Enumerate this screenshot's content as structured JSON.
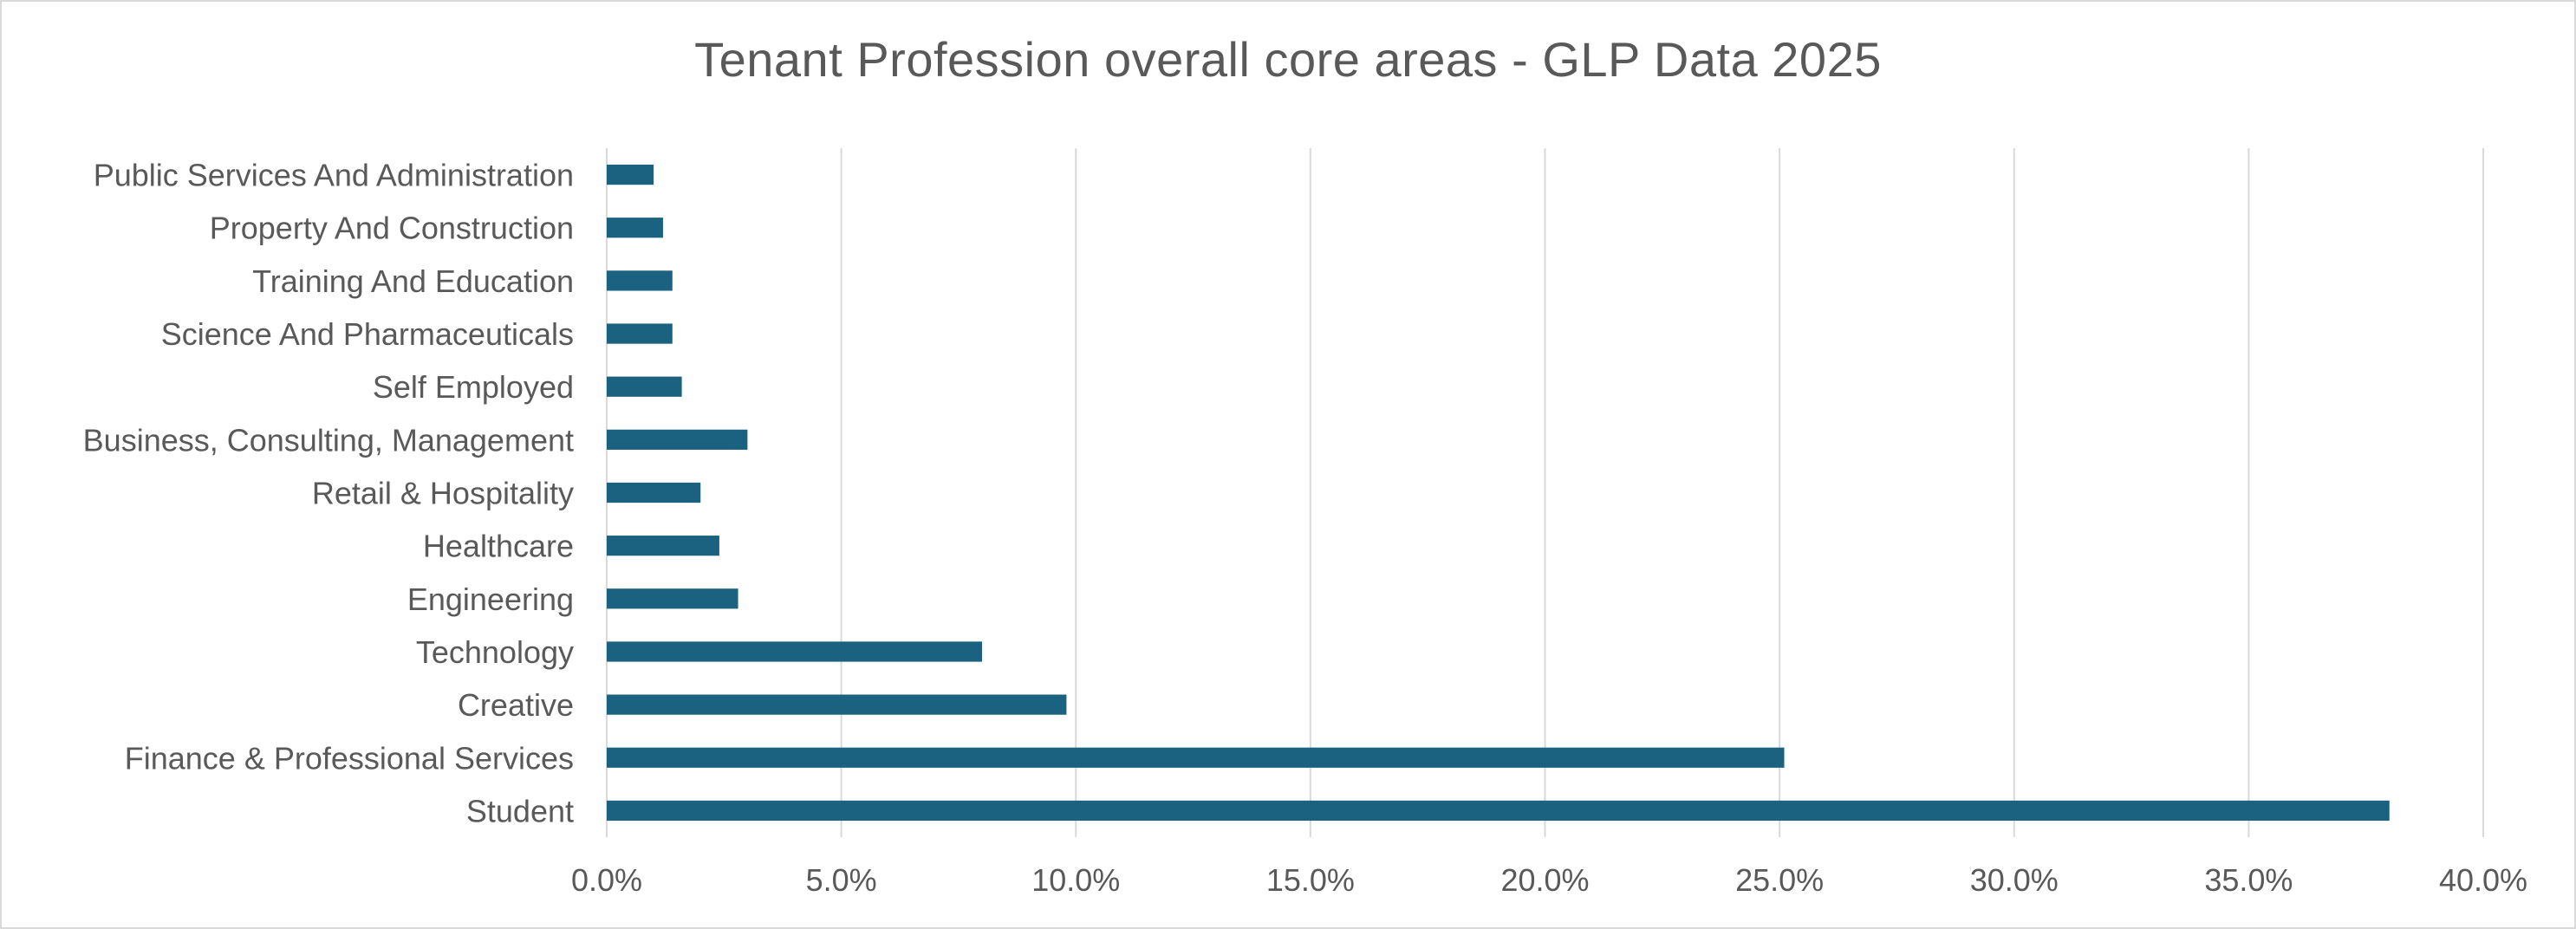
{
  "chart_data": {
    "type": "bar",
    "orientation": "horizontal",
    "title": "Tenant Profession overall core areas - GLP Data 2025",
    "categories": [
      "Public Services And Administration",
      "Property And Construction",
      "Training And Education",
      "Science And Pharmaceuticals",
      "Self Employed",
      "Business, Consulting, Management",
      "Retail & Hospitality",
      "Healthcare",
      "Engineering",
      "Technology",
      "Creative",
      "Finance & Professional Services",
      "Student"
    ],
    "values": [
      1.0,
      1.2,
      1.4,
      1.4,
      1.6,
      3.0,
      2.0,
      2.4,
      2.8,
      8.0,
      9.8,
      25.1,
      38.0
    ],
    "value_unit": "%",
    "xlim": [
      0,
      40
    ],
    "xticks": [
      "0.0%",
      "5.0%",
      "10.0%",
      "15.0%",
      "20.0%",
      "25.0%",
      "30.0%",
      "35.0%",
      "40.0%"
    ],
    "xtick_values": [
      0,
      5,
      10,
      15,
      20,
      25,
      30,
      35,
      40
    ],
    "grid": true,
    "legend": "none",
    "bar_color": "#1b6281",
    "grid_color": "#d9d9d9",
    "text_color": "#595959"
  }
}
